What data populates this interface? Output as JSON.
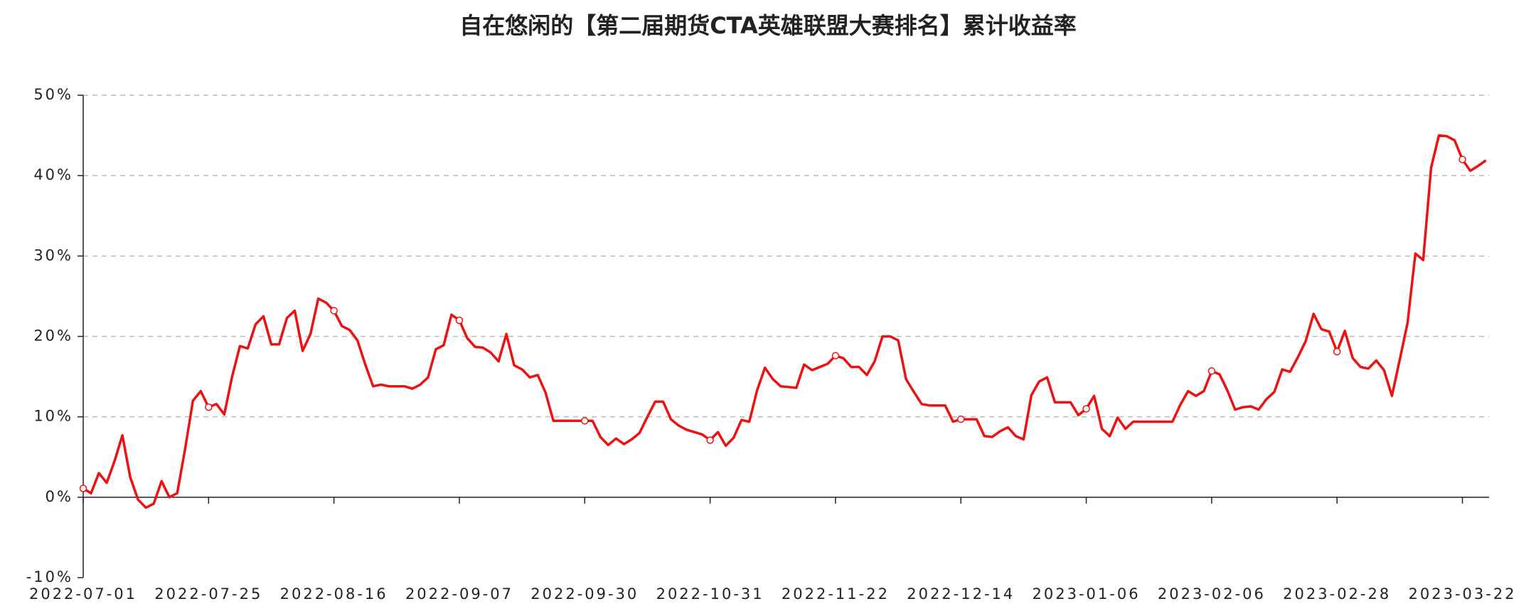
{
  "chart_data": {
    "type": "line",
    "title": "自在悠闲的【第二届期货CTA英雄联盟大赛排名】累计收益率",
    "categories": [
      "2022-07-01",
      null,
      null,
      null,
      null,
      null,
      null,
      null,
      null,
      null,
      null,
      null,
      null,
      null,
      null,
      null,
      "2022-07-25",
      null,
      null,
      null,
      null,
      null,
      null,
      null,
      null,
      null,
      null,
      null,
      null,
      null,
      null,
      null,
      "2022-08-16",
      null,
      null,
      null,
      null,
      null,
      null,
      null,
      null,
      null,
      null,
      null,
      null,
      null,
      null,
      null,
      "2022-09-07",
      null,
      null,
      null,
      null,
      null,
      null,
      null,
      null,
      null,
      null,
      null,
      null,
      null,
      null,
      null,
      "2022-09-30",
      null,
      null,
      null,
      null,
      null,
      null,
      null,
      null,
      null,
      null,
      null,
      null,
      null,
      null,
      null,
      "2022-10-31",
      null,
      null,
      null,
      null,
      null,
      null,
      null,
      null,
      null,
      null,
      null,
      null,
      null,
      null,
      null,
      "2022-11-22",
      null,
      null,
      null,
      null,
      null,
      null,
      null,
      null,
      null,
      null,
      null,
      null,
      null,
      null,
      null,
      "2022-12-14",
      null,
      null,
      null,
      null,
      null,
      null,
      null,
      null,
      null,
      null,
      null,
      null,
      null,
      null,
      null,
      "2023-01-06",
      null,
      null,
      null,
      null,
      null,
      null,
      null,
      null,
      null,
      null,
      null,
      null,
      null,
      null,
      null,
      "2023-02-06",
      null,
      null,
      null,
      null,
      null,
      null,
      null,
      null,
      null,
      null,
      null,
      null,
      null,
      null,
      null,
      "2023-02-28",
      null,
      null,
      null,
      null,
      null,
      null,
      null,
      null,
      null,
      null,
      null,
      null,
      null,
      null,
      null,
      "2023-03-22",
      null,
      null,
      null
    ],
    "values": [
      1.1,
      0.5,
      3.0,
      1.8,
      4.5,
      7.7,
      2.5,
      -0.3,
      -1.3,
      -0.8,
      2.0,
      0.0,
      0.5,
      6.0,
      12.0,
      13.2,
      11.2,
      11.6,
      10.3,
      15.0,
      18.8,
      18.5,
      21.5,
      22.5,
      19.0,
      19.0,
      22.3,
      23.2,
      18.2,
      20.3,
      24.7,
      24.2,
      23.2,
      21.3,
      20.8,
      19.5,
      16.5,
      13.8,
      14.0,
      13.8,
      13.8,
      13.8,
      13.5,
      14.0,
      14.9,
      18.4,
      18.9,
      22.7,
      22.0,
      19.8,
      18.7,
      18.6,
      18.0,
      16.9,
      20.3,
      16.4,
      15.9,
      14.9,
      15.2,
      13.0,
      9.5,
      9.5,
      9.5,
      9.5,
      9.5,
      9.5,
      7.5,
      6.5,
      7.3,
      6.6,
      7.2,
      8.0,
      10.0,
      11.9,
      11.9,
      9.7,
      8.9,
      8.4,
      8.1,
      7.8,
      7.1,
      8.1,
      6.4,
      7.4,
      9.6,
      9.4,
      13.3,
      16.1,
      14.7,
      13.8,
      13.7,
      13.6,
      16.5,
      15.8,
      16.2,
      16.6,
      17.6,
      17.3,
      16.2,
      16.2,
      15.2,
      16.9,
      20.0,
      20.0,
      19.5,
      14.7,
      13.1,
      11.6,
      11.4,
      11.4,
      11.4,
      9.4,
      9.7,
      9.7,
      9.7,
      7.6,
      7.5,
      8.2,
      8.7,
      7.6,
      7.2,
      12.7,
      14.4,
      14.9,
      11.8,
      11.8,
      11.8,
      10.2,
      11.0,
      12.6,
      8.5,
      7.6,
      9.9,
      8.5,
      9.4,
      9.4,
      9.4,
      9.4,
      9.4,
      9.4,
      11.5,
      13.2,
      12.6,
      13.2,
      15.7,
      15.3,
      13.3,
      10.9,
      11.2,
      11.3,
      10.9,
      12.2,
      13.1,
      15.9,
      15.6,
      17.4,
      19.4,
      22.8,
      20.9,
      20.6,
      18.1,
      20.7,
      17.3,
      16.2,
      16.0,
      17.0,
      15.8,
      12.6,
      17.1,
      21.7,
      30.3,
      29.5,
      41.0,
      45.0,
      44.9,
      44.4,
      42.0,
      40.6,
      41.2,
      41.9
    ],
    "color": "#ee1111",
    "ylim": [
      -10,
      50
    ],
    "yticks": [
      {
        "value": -10,
        "label": "-10%"
      },
      {
        "value": 0,
        "label": "0%"
      },
      {
        "value": 10,
        "label": "10%"
      },
      {
        "value": 20,
        "label": "20%"
      },
      {
        "value": 30,
        "label": "30%"
      },
      {
        "value": 40,
        "label": "40%"
      },
      {
        "value": 50,
        "label": "50%"
      }
    ],
    "grid": true
  }
}
